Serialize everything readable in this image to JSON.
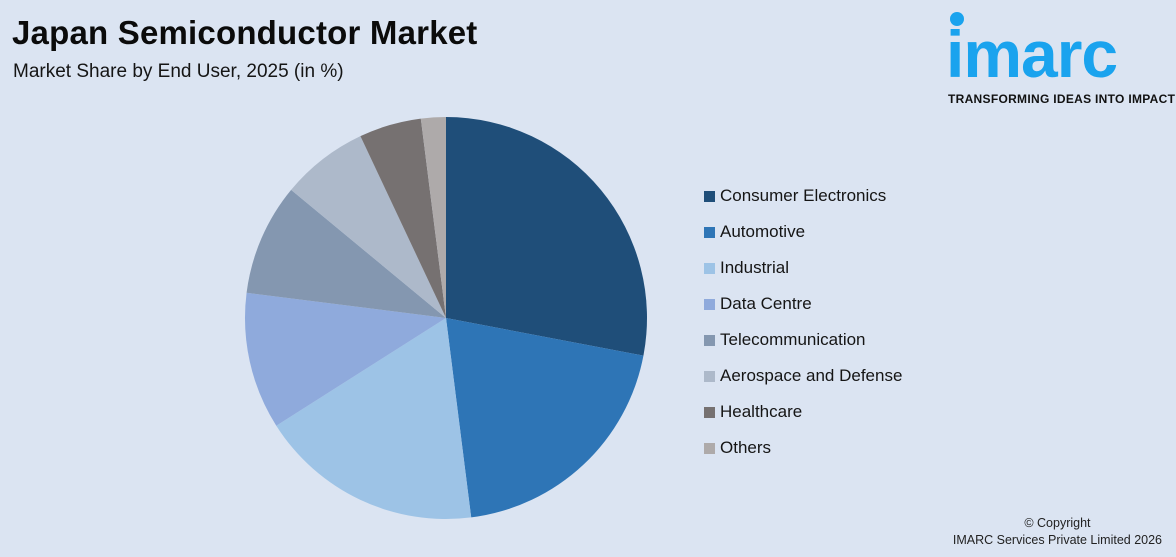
{
  "header": {
    "title": "Japan Semiconductor Market",
    "subtitle": "Market Share by End User, 2025 (in %)"
  },
  "logo": {
    "word": "imarc",
    "tagline": "TRANSFORMING IDEAS INTO IMPACT",
    "color": "#1aa3ee"
  },
  "footer": {
    "copyright": "© Copyright",
    "company": "IMARC Services Private Limited 2026"
  },
  "legend": {
    "items": [
      {
        "label": "Consumer Electronics",
        "color": "#1f4e79"
      },
      {
        "label": "Automotive",
        "color": "#2e75b6"
      },
      {
        "label": "Industrial",
        "color": "#9dc3e6"
      },
      {
        "label": "Data Centre",
        "color": "#8faadc"
      },
      {
        "label": "Telecommunication",
        "color": "#8497b0"
      },
      {
        "label": "Aerospace and Defense",
        "color": "#adb9ca"
      },
      {
        "label": "Healthcare",
        "color": "#767171"
      },
      {
        "label": "Others",
        "color": "#aeaaaa"
      }
    ]
  },
  "chart_data": {
    "type": "pie",
    "title": "Japan Semiconductor Market",
    "subtitle": "Market Share by End User, 2025 (in %)",
    "categories": [
      "Consumer Electronics",
      "Automotive",
      "Industrial",
      "Data Centre",
      "Telecommunication",
      "Aerospace and Defense",
      "Healthcare",
      "Others"
    ],
    "values": [
      28,
      20,
      18,
      11,
      9,
      7,
      5,
      2
    ],
    "colors": [
      "#1f4e79",
      "#2e75b6",
      "#9dc3e6",
      "#8faadc",
      "#8497b0",
      "#adb9ca",
      "#767171",
      "#aeaaaa"
    ],
    "start_angle_deg": 0,
    "direction": "clockwise",
    "legend_position": "right",
    "data_labels": false
  }
}
